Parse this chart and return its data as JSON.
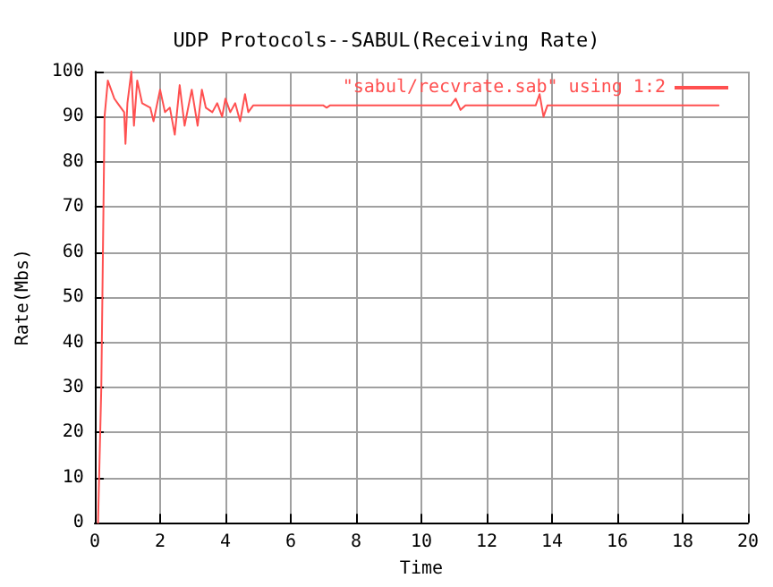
{
  "chart_data": {
    "type": "line",
    "title": "UDP Protocols--SABUL(Receiving Rate)",
    "xlabel": "Time",
    "ylabel": "Rate(Mbs)",
    "series": [
      {
        "name": "\"sabul/recvrate.sab\" using 1:2",
        "color": "#ff5050",
        "x": [
          0.1,
          0.2,
          0.25,
          0.3,
          0.4,
          0.5,
          0.6,
          0.7,
          0.8,
          0.9,
          0.94,
          1.0,
          1.12,
          1.2,
          1.3,
          1.45,
          1.7,
          1.8,
          2.0,
          2.15,
          2.3,
          2.45,
          2.6,
          2.75,
          2.97,
          3.15,
          3.28,
          3.4,
          3.6,
          3.75,
          3.9,
          4.0,
          4.15,
          4.3,
          4.45,
          4.6,
          4.7,
          4.85,
          7.0,
          7.1,
          7.2,
          10.9,
          11.05,
          11.2,
          11.35,
          13.5,
          13.62,
          13.74,
          13.86,
          19.1
        ],
        "values": [
          0,
          30,
          60,
          90,
          98,
          96,
          94,
          93,
          92,
          91,
          84,
          93,
          100,
          88,
          98,
          93,
          92,
          89,
          96,
          91,
          92,
          86,
          97,
          88,
          96,
          88,
          96,
          92,
          91,
          93,
          90,
          94,
          91,
          93,
          89,
          95,
          91,
          92.5,
          92.5,
          92,
          92.5,
          92.5,
          94,
          91.5,
          92.5,
          92.5,
          95,
          90,
          92.5,
          92.5
        ]
      }
    ],
    "xlim": [
      0,
      20
    ],
    "xticks": [
      0,
      2,
      4,
      6,
      8,
      10,
      12,
      14,
      16,
      18,
      20
    ],
    "ylim": [
      0,
      100
    ],
    "yticks": [
      0,
      10,
      20,
      30,
      40,
      50,
      60,
      70,
      80,
      90,
      100
    ],
    "grid": true,
    "legend": "top right",
    "marker": "none",
    "line_style": "solid"
  }
}
